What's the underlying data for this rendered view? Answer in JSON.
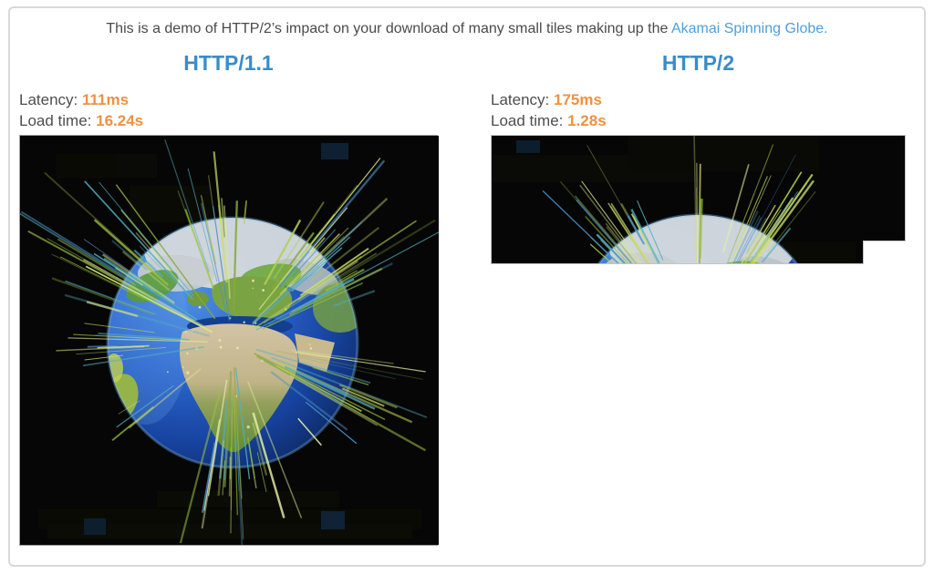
{
  "intro": {
    "text_before_link": "This is a demo of HTTP/2’s impact on your download of many small tiles making up the",
    "link_text": "Akamai Spinning Globe."
  },
  "panels": [
    {
      "protocol": "HTTP/1.1",
      "latency_label": "Latency:",
      "latency_value": "111ms",
      "load_time_label": "Load time:",
      "load_time_value": "16.24s",
      "image": "akamai-spinning-globe-fully-loaded"
    },
    {
      "protocol": "HTTP/2",
      "latency_label": "Latency:",
      "latency_value": "175ms",
      "load_time_label": "Load time:",
      "load_time_value": "1.28s",
      "image": "akamai-spinning-globe-partially-loaded"
    }
  ],
  "colors": {
    "accent_blue": "#3a8cc8",
    "link_blue": "#4f9fd9",
    "value_orange": "#ef9140",
    "label_gray": "#4d4d4d",
    "text_gray": "#4a4a4a",
    "frame_border": "#d8d8d8",
    "image_bg": "#060606"
  }
}
